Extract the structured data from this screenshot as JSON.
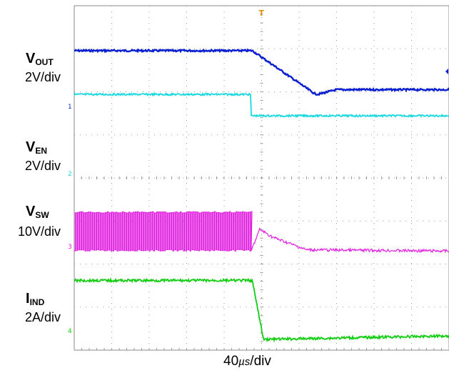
{
  "labels": {
    "vout": {
      "main": "V",
      "sub": "OUT",
      "scale": "2V/div"
    },
    "ven": {
      "main": "V",
      "sub": "EN",
      "scale": "2V/div"
    },
    "vsw": {
      "main": "V",
      "sub": "SW",
      "scale": "10V/div"
    },
    "iind": {
      "main": "I",
      "sub": "IND",
      "scale": "2A/div"
    },
    "timebase": {
      "value": "40",
      "unit": "µs",
      "suffix": "/div"
    }
  },
  "channel_markers": [
    "1",
    "2",
    "3",
    "4"
  ],
  "chart_data": {
    "type": "line",
    "title": "",
    "xlabel": "40µs/div",
    "grid": true,
    "divisions": {
      "x": 10,
      "y": 8
    },
    "trigger_marker": "T",
    "series": [
      {
        "name": "VOUT",
        "unit": "V",
        "scale_per_div": 2,
        "color": "#0a1fcf",
        "description_points_div": [
          [
            0,
            5.35
          ],
          [
            4.75,
            5.35
          ],
          [
            6.4,
            3.05
          ],
          [
            6.5,
            3.0
          ],
          [
            7.0,
            3.25
          ],
          [
            10,
            3.25
          ]
        ],
        "ripple": "low"
      },
      {
        "name": "VEN",
        "unit": "V",
        "scale_per_div": 2,
        "color": "#18d8e0",
        "description_points_div": [
          [
            0,
            3.15
          ],
          [
            4.72,
            3.15
          ],
          [
            4.72,
            2.0
          ],
          [
            10,
            2.0
          ]
        ],
        "ripple": "low"
      },
      {
        "name": "VSW",
        "unit": "V",
        "scale_per_div": 10,
        "color": "#e01ee0",
        "switching_until_div": 4.72,
        "high_level_div": 0.25,
        "low_level_div": -0.75,
        "after_points_div": [
          [
            4.72,
            -0.75
          ],
          [
            4.95,
            -0.2
          ],
          [
            5.3,
            -0.4
          ],
          [
            6.2,
            -0.72
          ],
          [
            10,
            -0.75
          ]
        ]
      },
      {
        "name": "IIND",
        "unit": "A",
        "scale_per_div": 2,
        "color": "#11cc11",
        "description_points_div": [
          [
            0,
            -1.55
          ],
          [
            4.75,
            -1.55
          ],
          [
            5.05,
            -3.2
          ],
          [
            10,
            -3.1
          ]
        ],
        "ripple": "medium"
      }
    ]
  }
}
